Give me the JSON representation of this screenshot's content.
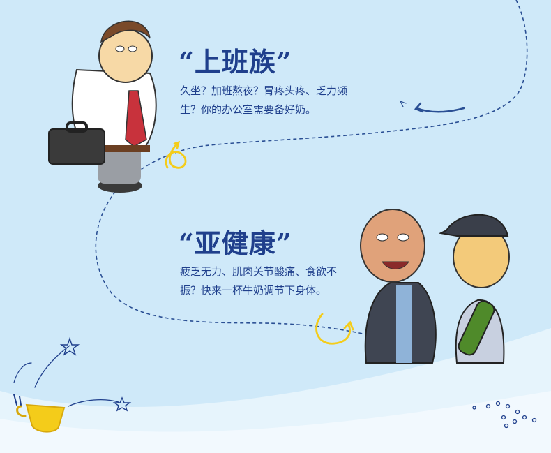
{
  "sections": [
    {
      "title": "“上班族”",
      "description": "久坐？加班熬夜？胃疼头疼、乏力频生？你的办公室需要备好奶。"
    },
    {
      "title": "“亚健康”",
      "description": "疲乏无力、肌肉关节酸痛、食欲不振？快来一杯牛奶调节下身体。"
    }
  ],
  "colors": {
    "background": "#cfe9f9",
    "text": "#1f3f8c",
    "accent_yellow": "#f4cc1a",
    "dashed_path": "#2a4f94"
  },
  "illustrations": [
    "office-worker-icon",
    "two-men-icon",
    "coffee-cup-icon",
    "star-icon"
  ]
}
